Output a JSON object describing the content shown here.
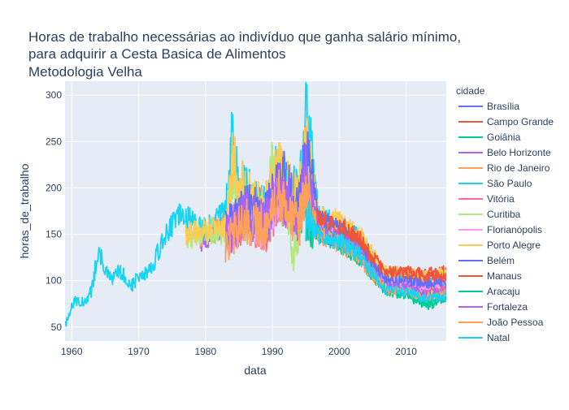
{
  "chart_data": {
    "type": "line",
    "title_lines": [
      "Horas de trabalho necessárias ao indivíduo que ganha salário mínimo,",
      "para adquirir a Cesta Basica de Alimentos",
      "Metodologia Velha"
    ],
    "xlabel": "data",
    "ylabel": "horas_de_trabalho",
    "xlim": [
      1959,
      2016
    ],
    "ylim": [
      35,
      315
    ],
    "xticks": [
      1960,
      1970,
      1980,
      1990,
      2000,
      2010
    ],
    "yticks": [
      50,
      100,
      150,
      200,
      250,
      300
    ],
    "grid": true,
    "legend_title": "cidade",
    "legend_position": "right",
    "series": [
      {
        "name": "Brasília",
        "color": "#636efa",
        "start": 1983.0,
        "anchors": [
          [
            1983,
            150
          ],
          [
            1986,
            170
          ],
          [
            1989,
            160
          ],
          [
            1990,
            200
          ],
          [
            1992,
            210
          ],
          [
            1994,
            170
          ],
          [
            1995,
            230
          ],
          [
            1997,
            160
          ],
          [
            2000,
            150
          ],
          [
            2003,
            140
          ],
          [
            2005,
            120
          ],
          [
            2007,
            100
          ],
          [
            2010,
            100
          ],
          [
            2013,
            95
          ],
          [
            2016,
            100
          ]
        ]
      },
      {
        "name": "Campo Grande",
        "color": "#EF553B",
        "start": 1995.0,
        "anchors": [
          [
            1995,
            170
          ],
          [
            1997,
            165
          ],
          [
            2000,
            160
          ],
          [
            2003,
            145
          ],
          [
            2005,
            120
          ],
          [
            2007,
            105
          ],
          [
            2010,
            110
          ],
          [
            2013,
            108
          ],
          [
            2016,
            110
          ]
        ]
      },
      {
        "name": "Goiânia",
        "color": "#00cc96",
        "start": 1983.0,
        "anchors": [
          [
            1983,
            150
          ],
          [
            1986,
            175
          ],
          [
            1989,
            160
          ],
          [
            1991,
            195
          ],
          [
            1994,
            165
          ],
          [
            1995,
            200
          ],
          [
            1997,
            155
          ],
          [
            2000,
            140
          ],
          [
            2003,
            125
          ],
          [
            2005,
            105
          ],
          [
            2007,
            90
          ],
          [
            2010,
            88
          ],
          [
            2013,
            78
          ],
          [
            2016,
            82
          ]
        ]
      },
      {
        "name": "Belo Horizonte",
        "color": "#ab63fa",
        "start": 1979.0,
        "anchors": [
          [
            1979,
            140
          ],
          [
            1983,
            160
          ],
          [
            1986,
            185
          ],
          [
            1989,
            170
          ],
          [
            1991,
            200
          ],
          [
            1994,
            175
          ],
          [
            1995,
            250
          ],
          [
            1997,
            155
          ],
          [
            2000,
            150
          ],
          [
            2003,
            135
          ],
          [
            2005,
            115
          ],
          [
            2007,
            95
          ],
          [
            2010,
            95
          ],
          [
            2013,
            90
          ],
          [
            2016,
            92
          ]
        ]
      },
      {
        "name": "Rio de Janeiro",
        "color": "#FFA15A",
        "start": 1979.0,
        "anchors": [
          [
            1979,
            145
          ],
          [
            1983,
            165
          ],
          [
            1986,
            190
          ],
          [
            1989,
            175
          ],
          [
            1991,
            215
          ],
          [
            1994,
            180
          ],
          [
            1995,
            250
          ],
          [
            1997,
            160
          ],
          [
            2000,
            155
          ],
          [
            2003,
            140
          ],
          [
            2005,
            120
          ],
          [
            2007,
            100
          ],
          [
            2010,
            100
          ],
          [
            2013,
            98
          ],
          [
            2016,
            100
          ]
        ]
      },
      {
        "name": "São Paulo",
        "color": "#19d3f3",
        "start": 1959.0,
        "anchors": [
          [
            1959,
            50
          ],
          [
            1960,
            75
          ],
          [
            1961,
            80
          ],
          [
            1962,
            75
          ],
          [
            1963,
            90
          ],
          [
            1964,
            135
          ],
          [
            1965,
            110
          ],
          [
            1966,
            100
          ],
          [
            1967,
            110
          ],
          [
            1968,
            105
          ],
          [
            1969,
            95
          ],
          [
            1970,
            105
          ],
          [
            1972,
            115
          ],
          [
            1974,
            150
          ],
          [
            1976,
            170
          ],
          [
            1978,
            165
          ],
          [
            1980,
            155
          ],
          [
            1983,
            175
          ],
          [
            1984,
            255
          ],
          [
            1985,
            200
          ],
          [
            1987,
            190
          ],
          [
            1989,
            185
          ],
          [
            1990,
            215
          ],
          [
            1992,
            200
          ],
          [
            1994,
            190
          ],
          [
            1995,
            280
          ],
          [
            1997,
            170
          ],
          [
            2000,
            160
          ],
          [
            2003,
            145
          ],
          [
            2005,
            125
          ],
          [
            2007,
            105
          ],
          [
            2010,
            105
          ],
          [
            2013,
            100
          ],
          [
            2016,
            100
          ]
        ]
      },
      {
        "name": "Vitória",
        "color": "#FF6692",
        "start": 1983.0,
        "anchors": [
          [
            1983,
            145
          ],
          [
            1986,
            165
          ],
          [
            1989,
            155
          ],
          [
            1991,
            190
          ],
          [
            1994,
            165
          ],
          [
            1995,
            210
          ],
          [
            1997,
            150
          ],
          [
            2000,
            145
          ],
          [
            2003,
            130
          ],
          [
            2005,
            110
          ],
          [
            2007,
            92
          ],
          [
            2010,
            92
          ],
          [
            2013,
            88
          ],
          [
            2016,
            90
          ]
        ]
      },
      {
        "name": "Curitiba",
        "color": "#B6E880",
        "start": 1977.0,
        "anchors": [
          [
            1977,
            145
          ],
          [
            1980,
            150
          ],
          [
            1983,
            150
          ],
          [
            1984,
            215
          ],
          [
            1985,
            175
          ],
          [
            1987,
            165
          ],
          [
            1989,
            165
          ],
          [
            1990,
            230
          ],
          [
            1992,
            195
          ],
          [
            1993,
            125
          ],
          [
            1994,
            160
          ],
          [
            1995,
            225
          ],
          [
            1997,
            155
          ],
          [
            2000,
            145
          ],
          [
            2003,
            130
          ],
          [
            2005,
            110
          ],
          [
            2007,
            90
          ],
          [
            2010,
            90
          ],
          [
            2013,
            85
          ],
          [
            2016,
            85
          ]
        ]
      },
      {
        "name": "Florianópolis",
        "color": "#FF97FF",
        "start": 1983.0,
        "anchors": [
          [
            1983,
            150
          ],
          [
            1986,
            170
          ],
          [
            1989,
            160
          ],
          [
            1991,
            195
          ],
          [
            1994,
            170
          ],
          [
            1995,
            215
          ],
          [
            1997,
            155
          ],
          [
            2000,
            150
          ],
          [
            2003,
            135
          ],
          [
            2005,
            115
          ],
          [
            2007,
            98
          ],
          [
            2010,
            98
          ],
          [
            2013,
            95
          ],
          [
            2016,
            98
          ]
        ]
      },
      {
        "name": "Porto Alegre",
        "color": "#FECB52",
        "start": 1977.0,
        "anchors": [
          [
            1977,
            150
          ],
          [
            1980,
            155
          ],
          [
            1983,
            160
          ],
          [
            1984,
            230
          ],
          [
            1986,
            190
          ],
          [
            1989,
            180
          ],
          [
            1991,
            220
          ],
          [
            1994,
            185
          ],
          [
            1995,
            255
          ],
          [
            1997,
            170
          ],
          [
            2000,
            165
          ],
          [
            2003,
            150
          ],
          [
            2005,
            128
          ],
          [
            2007,
            110
          ],
          [
            2010,
            108
          ],
          [
            2013,
            105
          ],
          [
            2016,
            108
          ]
        ]
      },
      {
        "name": "Belém",
        "color": "#636efa",
        "start": 1983.0,
        "anchors": [
          [
            1983,
            155
          ],
          [
            1986,
            180
          ],
          [
            1989,
            170
          ],
          [
            1991,
            210
          ],
          [
            1994,
            180
          ],
          [
            1995,
            240
          ],
          [
            1997,
            165
          ],
          [
            2000,
            155
          ],
          [
            2003,
            140
          ],
          [
            2005,
            120
          ],
          [
            2007,
            100
          ],
          [
            2010,
            100
          ],
          [
            2013,
            97
          ],
          [
            2016,
            100
          ]
        ]
      },
      {
        "name": "Manaus",
        "color": "#EF553B",
        "start": 1995.0,
        "anchors": [
          [
            1995,
            180
          ],
          [
            1997,
            165
          ],
          [
            2000,
            160
          ],
          [
            2003,
            145
          ],
          [
            2005,
            125
          ],
          [
            2007,
            110
          ],
          [
            2010,
            108
          ],
          [
            2013,
            105
          ],
          [
            2016,
            105
          ]
        ]
      },
      {
        "name": "Aracaju",
        "color": "#00cc96",
        "start": 1995.0,
        "anchors": [
          [
            1995,
            160
          ],
          [
            1997,
            150
          ],
          [
            2000,
            140
          ],
          [
            2003,
            125
          ],
          [
            2005,
            105
          ],
          [
            2007,
            88
          ],
          [
            2010,
            85
          ],
          [
            2013,
            72
          ],
          [
            2016,
            80
          ]
        ]
      },
      {
        "name": "Fortaleza",
        "color": "#ab63fa",
        "start": 1983.0,
        "anchors": [
          [
            1983,
            145
          ],
          [
            1986,
            170
          ],
          [
            1989,
            160
          ],
          [
            1991,
            195
          ],
          [
            1994,
            165
          ],
          [
            1995,
            215
          ],
          [
            1997,
            150
          ],
          [
            2000,
            145
          ],
          [
            2003,
            130
          ],
          [
            2005,
            110
          ],
          [
            2007,
            92
          ],
          [
            2010,
            92
          ],
          [
            2013,
            85
          ],
          [
            2016,
            88
          ]
        ]
      },
      {
        "name": "João Pessoa",
        "color": "#FFA15A",
        "start": 1983.0,
        "anchors": [
          [
            1983,
            140
          ],
          [
            1986,
            165
          ],
          [
            1989,
            155
          ],
          [
            1991,
            190
          ],
          [
            1994,
            160
          ],
          [
            1995,
            205
          ],
          [
            1997,
            148
          ],
          [
            2000,
            140
          ],
          [
            2003,
            125
          ],
          [
            2005,
            105
          ],
          [
            2007,
            90
          ],
          [
            2010,
            88
          ],
          [
            2013,
            82
          ],
          [
            2016,
            85
          ]
        ]
      },
      {
        "name": "Natal",
        "color": "#19d3f3",
        "start": 1995.0,
        "anchors": [
          [
            1995,
            165
          ],
          [
            1997,
            150
          ],
          [
            2000,
            142
          ],
          [
            2003,
            128
          ],
          [
            2005,
            108
          ],
          [
            2007,
            90
          ],
          [
            2010,
            88
          ],
          [
            2013,
            80
          ],
          [
            2016,
            84
          ]
        ]
      }
    ]
  }
}
